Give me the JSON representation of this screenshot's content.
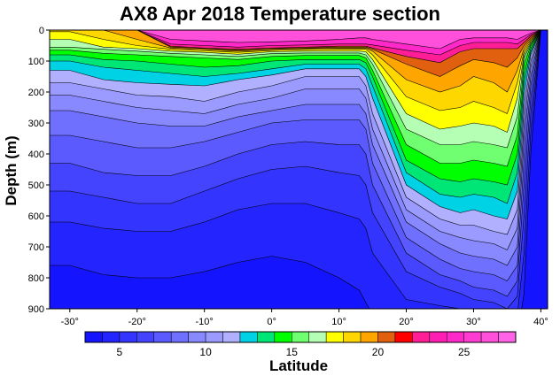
{
  "chart_data": {
    "type": "heatmap",
    "title": "AX8 Apr 2018 Temperature section",
    "xlabel": "Latitude",
    "ylabel": "Depth (m)",
    "xlim": [
      -33,
      41
    ],
    "ylim": [
      900,
      0
    ],
    "x_ticks": [
      -30,
      -20,
      -10,
      0,
      10,
      20,
      30,
      40
    ],
    "x_tick_labels": [
      "-30°",
      "-20°",
      "-10°",
      "0°",
      "10°",
      "20°",
      "30°",
      "40°"
    ],
    "y_ticks": [
      0,
      100,
      200,
      300,
      400,
      500,
      600,
      700,
      800,
      900
    ],
    "y_tick_labels": [
      "0",
      "100",
      "200",
      "300",
      "400",
      "500",
      "600",
      "700",
      "800",
      "900"
    ],
    "colorbar": {
      "min": 3,
      "max": 28,
      "ticks": [
        5,
        10,
        15,
        20,
        25
      ],
      "tick_labels": [
        "5",
        "10",
        "15",
        "20",
        "25"
      ],
      "levels": [
        3,
        4,
        5,
        6,
        7,
        8,
        9,
        10,
        11,
        12,
        13,
        14,
        15,
        16,
        17,
        18,
        19,
        20,
        21,
        22,
        23,
        24,
        25,
        26,
        27,
        28
      ],
      "colors": [
        "#1414ff",
        "#2424ff",
        "#3434ff",
        "#4444ff",
        "#5a5aff",
        "#7070ff",
        "#8888ff",
        "#9a9aff",
        "#b0b0ff",
        "#00d2e6",
        "#00e676",
        "#00ff00",
        "#70ff70",
        "#b4ffb4",
        "#ffff00",
        "#ffd700",
        "#ffa500",
        "#e06010",
        "#ff0000",
        "#ff1e96",
        "#ff1eb4",
        "#ff28c8",
        "#ff3cd2",
        "#ff50dc",
        "#ff64e6"
      ]
    },
    "isotherm_depths": {
      "latitudes": [
        -33,
        -30,
        -25,
        -20,
        -15,
        -10,
        -5,
        0,
        5,
        10,
        13,
        14,
        15,
        20,
        25,
        28,
        30,
        33,
        35,
        36.5,
        37.5,
        38.5,
        40,
        41
      ],
      "levels": [
        27,
        25,
        23,
        21,
        20,
        19,
        18,
        17,
        16,
        15,
        14,
        13,
        12,
        11,
        10,
        9,
        8,
        7,
        6,
        5,
        4
      ],
      "depths": [
        [
          0,
          0,
          0,
          0,
          0,
          0,
          0,
          0,
          0,
          0,
          0,
          0,
          0,
          0,
          0,
          0,
          0,
          0,
          0,
          0,
          0,
          0,
          0,
          0
        ],
        [
          0,
          0,
          0,
          0,
          30,
          35,
          40,
          38,
          35,
          30,
          25,
          25,
          30,
          45,
          60,
          30,
          25,
          25,
          25,
          30,
          20,
          10,
          0,
          0
        ],
        [
          0,
          0,
          0,
          0,
          45,
          50,
          55,
          50,
          48,
          45,
          45,
          45,
          48,
          65,
          80,
          50,
          40,
          40,
          40,
          45,
          30,
          15,
          0,
          0
        ],
        [
          0,
          0,
          0,
          0,
          52,
          58,
          62,
          58,
          55,
          52,
          52,
          52,
          58,
          85,
          105,
          70,
          60,
          60,
          60,
          60,
          40,
          20,
          0,
          0
        ],
        [
          0,
          0,
          0,
          0,
          55,
          60,
          65,
          60,
          58,
          55,
          55,
          55,
          62,
          110,
          150,
          115,
          95,
          105,
          120,
          90,
          50,
          25,
          0,
          0
        ],
        [
          0,
          0,
          0,
          30,
          58,
          63,
          68,
          63,
          60,
          58,
          58,
          58,
          68,
          160,
          200,
          180,
          150,
          170,
          200,
          130,
          60,
          30,
          0,
          0
        ],
        [
          5,
          5,
          30,
          50,
          62,
          67,
          72,
          66,
          63,
          62,
          62,
          62,
          80,
          215,
          260,
          250,
          230,
          250,
          270,
          170,
          70,
          35,
          0,
          0
        ],
        [
          30,
          30,
          55,
          60,
          68,
          72,
          78,
          70,
          68,
          68,
          68,
          70,
          95,
          270,
          320,
          310,
          300,
          310,
          330,
          220,
          80,
          40,
          0,
          0
        ],
        [
          55,
          55,
          62,
          68,
          75,
          80,
          85,
          76,
          74,
          74,
          74,
          80,
          110,
          320,
          370,
          370,
          360,
          370,
          380,
          280,
          90,
          45,
          0,
          0
        ],
        [
          65,
          65,
          75,
          80,
          85,
          90,
          95,
          85,
          82,
          82,
          82,
          90,
          130,
          370,
          430,
          430,
          420,
          430,
          440,
          340,
          110,
          50,
          0,
          0
        ],
        [
          80,
          80,
          95,
          100,
          110,
          120,
          115,
          100,
          95,
          95,
          95,
          105,
          150,
          420,
          480,
          490,
          480,
          490,
          500,
          400,
          140,
          60,
          0,
          0
        ],
        [
          100,
          100,
          120,
          130,
          140,
          150,
          140,
          125,
          110,
          110,
          110,
          125,
          180,
          460,
          530,
          540,
          530,
          540,
          560,
          460,
          170,
          70,
          0,
          0
        ],
        [
          130,
          130,
          160,
          170,
          175,
          180,
          160,
          145,
          125,
          125,
          125,
          150,
          220,
          500,
          570,
          590,
          580,
          600,
          610,
          520,
          210,
          80,
          0,
          0
        ],
        [
          170,
          170,
          190,
          210,
          215,
          230,
          200,
          180,
          150,
          150,
          150,
          180,
          270,
          540,
          610,
          630,
          630,
          650,
          660,
          580,
          250,
          100,
          0,
          0
        ],
        [
          210,
          210,
          230,
          250,
          260,
          270,
          240,
          220,
          190,
          190,
          190,
          220,
          320,
          580,
          650,
          670,
          680,
          690,
          710,
          640,
          300,
          120,
          0,
          0
        ],
        [
          260,
          260,
          280,
          300,
          310,
          310,
          280,
          260,
          240,
          240,
          240,
          270,
          370,
          620,
          690,
          720,
          730,
          740,
          760,
          700,
          350,
          150,
          0,
          0
        ],
        [
          340,
          340,
          360,
          380,
          380,
          360,
          330,
          300,
          290,
          290,
          290,
          320,
          430,
          670,
          740,
          770,
          780,
          790,
          810,
          760,
          420,
          180,
          0,
          0
        ],
        [
          430,
          430,
          460,
          470,
          470,
          440,
          400,
          370,
          360,
          370,
          370,
          400,
          500,
          720,
          790,
          810,
          830,
          840,
          860,
          810,
          500,
          220,
          0,
          0
        ],
        [
          520,
          520,
          540,
          560,
          560,
          520,
          480,
          450,
          440,
          460,
          470,
          500,
          590,
          780,
          830,
          850,
          870,
          880,
          900,
          860,
          600,
          270,
          0,
          0
        ],
        [
          620,
          620,
          640,
          650,
          650,
          620,
          580,
          560,
          560,
          590,
          610,
          640,
          720,
          870,
          890,
          900,
          910,
          920,
          940,
          920,
          720,
          330,
          0,
          0
        ],
        [
          760,
          760,
          790,
          800,
          800,
          780,
          750,
          730,
          750,
          800,
          840,
          880,
          920,
          980,
          990,
          990,
          990,
          990,
          990,
          990,
          850,
          400,
          0,
          0
        ]
      ]
    },
    "grid": false,
    "colorbar_placement": "bottom"
  }
}
